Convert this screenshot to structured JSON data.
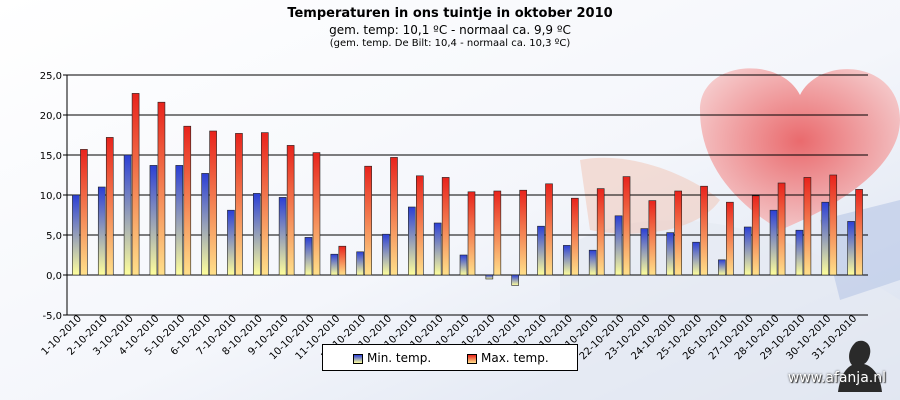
{
  "title": "Temperaturen  in ons tuintje in oktober 2010",
  "subtitle": "gem.  temp:  10,1  ºC  -  normaal  ca.  9,9  ºC",
  "subtitle2": "(gem. temp. De Bilt: 10,4 - normaal ca. 10,3 ºC)",
  "watermark": "www.afanja.nl",
  "colors": {
    "min_top": "#2b3fd6",
    "min_bottom": "#ffff9c",
    "max_top": "#e8231c",
    "max_bottom": "#ffe08a"
  },
  "chart_data": {
    "type": "bar",
    "categories": [
      "1-10-2010",
      "2-10-2010",
      "3-10-2010",
      "4-10-2010",
      "5-10-2010",
      "6-10-2010",
      "7-10-2010",
      "8-10-2010",
      "9-10-2010",
      "10-10-2010",
      "11-10-2010",
      "12-10-2010",
      "13-10-2010",
      "14-10-2010",
      "15-10-2010",
      "16-10-2010",
      "17-10-2010",
      "18-10-2010",
      "19-10-2010",
      "20-10-2010",
      "21-10-2010",
      "22-10-2010",
      "23-10-2010",
      "24-10-2010",
      "25-10-2010",
      "26-10-2010",
      "27-10-2010",
      "28-10-2010",
      "29-10-2010",
      "30-10-2010",
      "31-10-2010"
    ],
    "series": [
      {
        "name": "Min. temp.",
        "values": [
          10.0,
          11.0,
          15.0,
          13.7,
          13.7,
          12.7,
          8.1,
          10.2,
          9.7,
          4.7,
          2.6,
          2.9,
          5.1,
          8.5,
          6.5,
          2.5,
          -0.5,
          -1.3,
          6.1,
          3.7,
          3.1,
          7.4,
          5.8,
          5.3,
          4.1,
          1.9,
          6.0,
          8.1,
          5.6,
          9.1,
          6.7
        ]
      },
      {
        "name": "Max. temp.",
        "values": [
          15.7,
          17.2,
          22.7,
          21.6,
          18.6,
          18.0,
          17.7,
          17.8,
          16.2,
          15.3,
          3.6,
          13.6,
          14.7,
          12.4,
          12.2,
          10.4,
          10.5,
          10.6,
          11.4,
          9.6,
          10.8,
          12.3,
          9.3,
          10.5,
          11.1,
          9.1,
          9.9,
          11.5,
          12.2,
          12.5,
          10.7
        ]
      }
    ],
    "ylim": [
      -5,
      25
    ],
    "yticks": [
      "-5,0",
      "0,0",
      "5,0",
      "10,0",
      "15,0",
      "20,0",
      "25,0"
    ],
    "grid": true,
    "legend": "bottom"
  }
}
